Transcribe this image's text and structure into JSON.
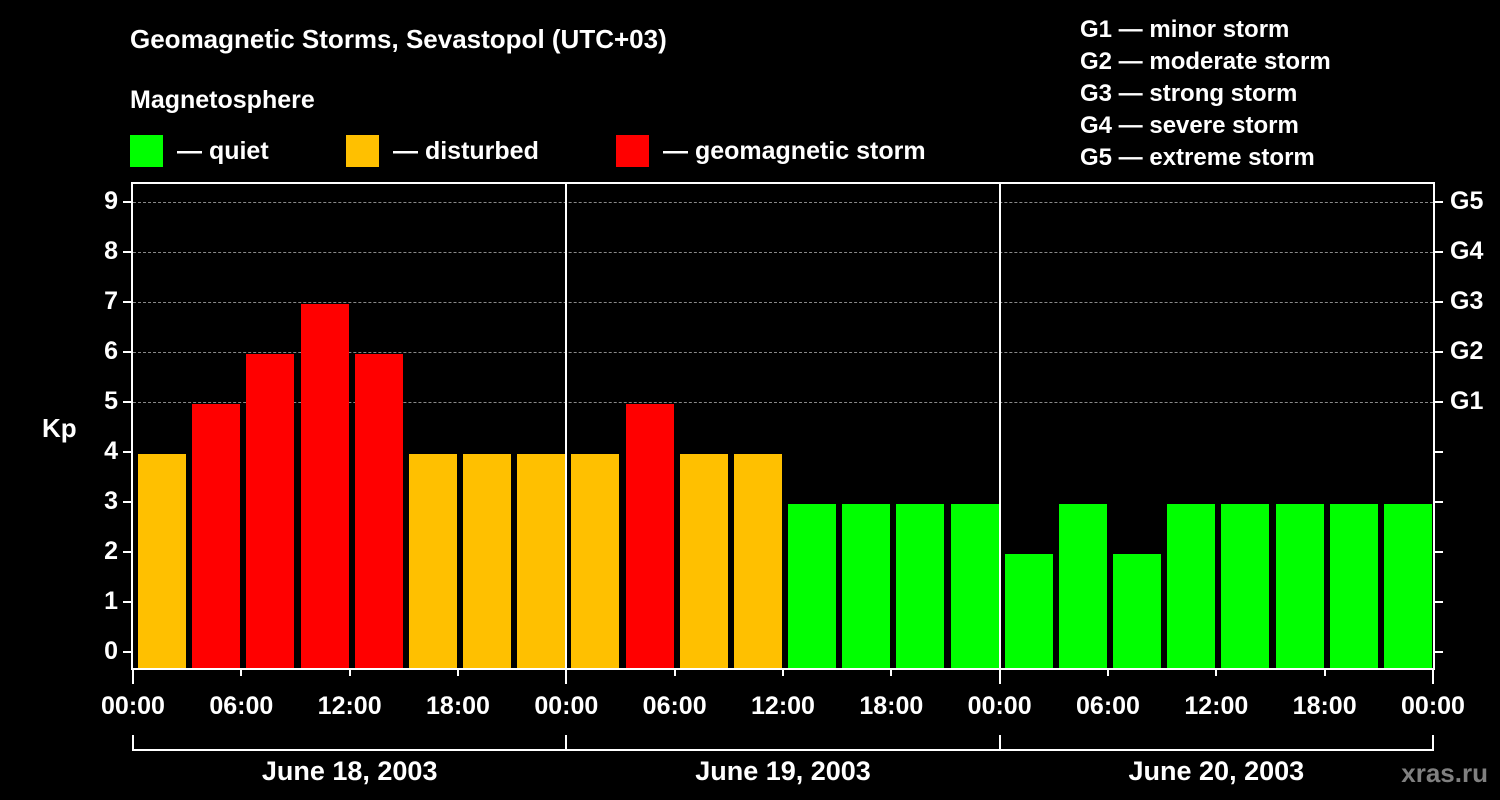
{
  "header": {
    "title": "Geomagnetic Storms, Sevastopol (UTC+03)",
    "subtitle": "Magnetosphere"
  },
  "legend": {
    "quiet": {
      "label": "— quiet",
      "color": "#00ff00"
    },
    "disturbed": {
      "label": "— disturbed",
      "color": "#ffc000"
    },
    "storm": {
      "label": "— geomagnetic storm",
      "color": "#ff0000"
    }
  },
  "g_legend": [
    "G1 — minor storm",
    "G2 — moderate storm",
    "G3 — strong storm",
    "G4 — severe storm",
    "G5 — extreme storm"
  ],
  "axes": {
    "ylabel": "Kp",
    "yticks": [
      "0",
      "1",
      "2",
      "3",
      "4",
      "5",
      "6",
      "7",
      "8",
      "9"
    ],
    "right_ticks": [
      "G1",
      "G2",
      "G3",
      "G4",
      "G5"
    ],
    "xticks": [
      "00:00",
      "06:00",
      "12:00",
      "18:00",
      "00:00",
      "06:00",
      "12:00",
      "18:00",
      "00:00",
      "06:00",
      "12:00",
      "18:00",
      "00:00"
    ],
    "dates": [
      "June 18, 2003",
      "June 19, 2003",
      "June 20, 2003"
    ]
  },
  "watermark": "xras.ru",
  "chart_data": {
    "type": "bar",
    "title": "Geomagnetic Storms, Sevastopol (UTC+03)",
    "subtitle": "Magnetosphere",
    "xlabel": "",
    "ylabel": "Kp",
    "ylim": [
      0,
      9
    ],
    "grid": "horizontal dashed at Kp 5-9",
    "categories": [
      "June 18 00:00",
      "June 18 03:00",
      "June 18 06:00",
      "June 18 09:00",
      "June 18 12:00",
      "June 18 15:00",
      "June 18 18:00",
      "June 18 21:00",
      "June 19 00:00",
      "June 19 03:00",
      "June 19 06:00",
      "June 19 09:00",
      "June 19 12:00",
      "June 19 15:00",
      "June 19 18:00",
      "June 19 21:00",
      "June 20 00:00",
      "June 20 03:00",
      "June 20 06:00",
      "June 20 09:00",
      "June 20 12:00",
      "June 20 15:00",
      "June 20 18:00",
      "June 20 21:00"
    ],
    "values": [
      4,
      5,
      6,
      7,
      6,
      4,
      4,
      4,
      4,
      5,
      4,
      4,
      3,
      3,
      3,
      3,
      2,
      3,
      2,
      3,
      3,
      3,
      3,
      3
    ],
    "color_rule": {
      "quiet": "Kp<4 (#00ff00)",
      "disturbed": "Kp=4 (#ffc000)",
      "storm": "Kp>=5 (#ff0000)"
    },
    "right_axis": {
      "G1": 5,
      "G2": 6,
      "G3": 7,
      "G4": 8,
      "G5": 9
    },
    "legend": [
      "quiet",
      "disturbed",
      "geomagnetic storm"
    ]
  }
}
